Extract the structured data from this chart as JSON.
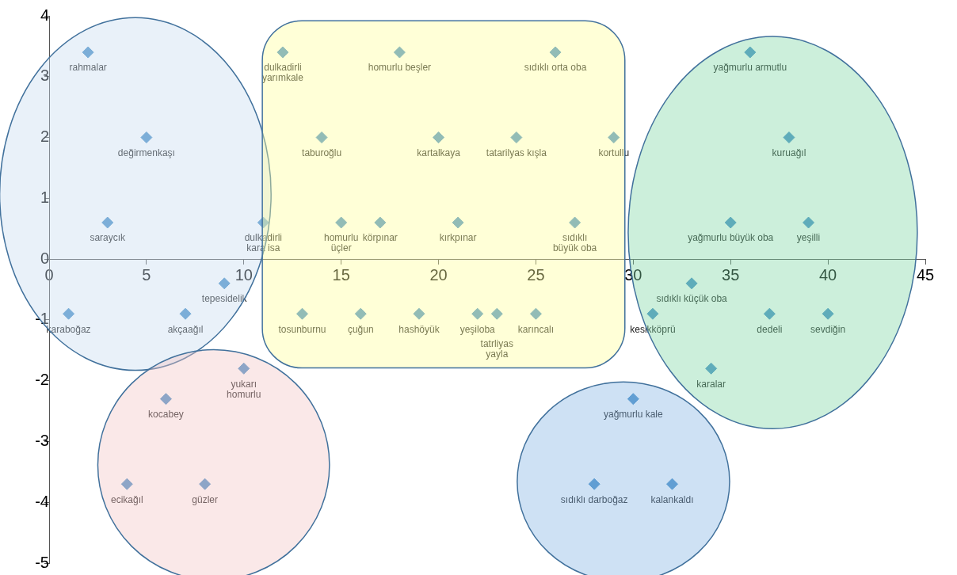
{
  "chart_data": {
    "type": "scatter",
    "marker": "diamond",
    "color": "#4a90c8",
    "grid": false,
    "legend": false,
    "xlim": [
      0,
      45
    ],
    "ylim": [
      -5,
      4
    ],
    "xticks": [
      0,
      5,
      10,
      15,
      20,
      25,
      30,
      35,
      40,
      45
    ],
    "yticks": [
      -5,
      -4,
      -3,
      -2,
      -1,
      0,
      1,
      2,
      3,
      4
    ],
    "x": [
      2,
      5,
      3,
      1,
      7,
      9,
      11,
      12,
      18,
      26,
      14,
      20,
      24,
      29,
      15,
      17,
      21,
      27,
      13,
      16,
      19,
      22,
      23,
      25,
      31,
      33,
      36,
      38,
      35,
      39,
      37,
      40,
      34,
      30,
      28,
      32,
      6,
      10,
      4,
      8
    ],
    "values": [
      3.4,
      2,
      0.6,
      -0.9,
      -0.9,
      -0.4,
      0.6,
      3.4,
      3.4,
      3.4,
      2,
      2,
      2,
      2,
      0.6,
      0.6,
      0.6,
      0.6,
      -0.9,
      -0.9,
      -0.9,
      -0.9,
      -0.9,
      -0.9,
      -0.9,
      -0.4,
      3.4,
      2,
      0.6,
      0.6,
      -0.9,
      -0.9,
      -1.8,
      -2.3,
      -3.7,
      -3.7,
      -2.3,
      -1.8,
      -3.7,
      -3.7
    ],
    "annotations": [
      {
        "text": "rahmalar",
        "x": 2,
        "y": 3.4
      },
      {
        "text": "değirmenkaşı",
        "x": 5,
        "y": 2
      },
      {
        "text": "saraycık",
        "x": 3,
        "y": 0.6
      },
      {
        "text": "karaboğaz",
        "x": 1,
        "y": -0.9
      },
      {
        "text": "akçaağıl",
        "x": 7,
        "y": -0.9
      },
      {
        "text": "tepesidelik",
        "x": 9,
        "y": -0.4
      },
      {
        "text": "dulkadirli\nkara isa",
        "x": 11,
        "y": 0.6
      },
      {
        "text": "dulkadirli\nyarımkale",
        "x": 12,
        "y": 3.4
      },
      {
        "text": "homurlu beşler",
        "x": 18,
        "y": 3.4
      },
      {
        "text": "sıdıklı orta oba",
        "x": 26,
        "y": 3.4
      },
      {
        "text": "taburoğlu",
        "x": 14,
        "y": 2
      },
      {
        "text": "kartalkaya",
        "x": 20,
        "y": 2
      },
      {
        "text": "tatarilyas kışla",
        "x": 24,
        "y": 2
      },
      {
        "text": "kortullu",
        "x": 29,
        "y": 2
      },
      {
        "text": "homurlu\nüçler",
        "x": 15,
        "y": 0.6
      },
      {
        "text": "körpınar",
        "x": 17,
        "y": 0.6
      },
      {
        "text": "kırkpınar",
        "x": 21,
        "y": 0.6
      },
      {
        "text": "sıdıklı\nbüyük oba",
        "x": 27,
        "y": 0.6
      },
      {
        "text": "tosunburnu",
        "x": 13,
        "y": -0.9
      },
      {
        "text": "çuğun",
        "x": 16,
        "y": -0.9
      },
      {
        "text": "hashöyük",
        "x": 19,
        "y": -0.9
      },
      {
        "text": "yeşiloba",
        "x": 22,
        "y": -0.9
      },
      {
        "text": "tatrliyas\nyayla",
        "x": 23,
        "y": -0.9
      },
      {
        "text": "karıncalı",
        "x": 25,
        "y": -0.9
      },
      {
        "text": "kesikköprü",
        "x": 31,
        "y": -0.9
      },
      {
        "text": "sıdıklı küçük oba",
        "x": 33,
        "y": -0.4
      },
      {
        "text": "yağmurlu armutlu",
        "x": 36,
        "y": 3.4
      },
      {
        "text": "kuruağıl",
        "x": 38,
        "y": 2
      },
      {
        "text": "yağmurlu büyük oba",
        "x": 35,
        "y": 0.6
      },
      {
        "text": "yeşilli",
        "x": 39,
        "y": 0.6
      },
      {
        "text": "dedeli",
        "x": 37,
        "y": -0.9
      },
      {
        "text": "sevdiğin",
        "x": 40,
        "y": -0.9
      },
      {
        "text": "karalar",
        "x": 34,
        "y": -1.8
      },
      {
        "text": "yağmurlu kale",
        "x": 30,
        "y": -2.3
      },
      {
        "text": "sıdıklı darboğaz",
        "x": 28,
        "y": -3.7
      },
      {
        "text": "kalankaldı",
        "x": 32,
        "y": -3.7
      },
      {
        "text": "kocabey",
        "x": 6,
        "y": -2.3
      },
      {
        "text": "yukarı\nhomurlu",
        "x": 10,
        "y": -1.8
      },
      {
        "text": "ecikağıl",
        "x": 4,
        "y": -3.7
      },
      {
        "text": "güzler",
        "x": 8,
        "y": -3.7
      }
    ]
  }
}
